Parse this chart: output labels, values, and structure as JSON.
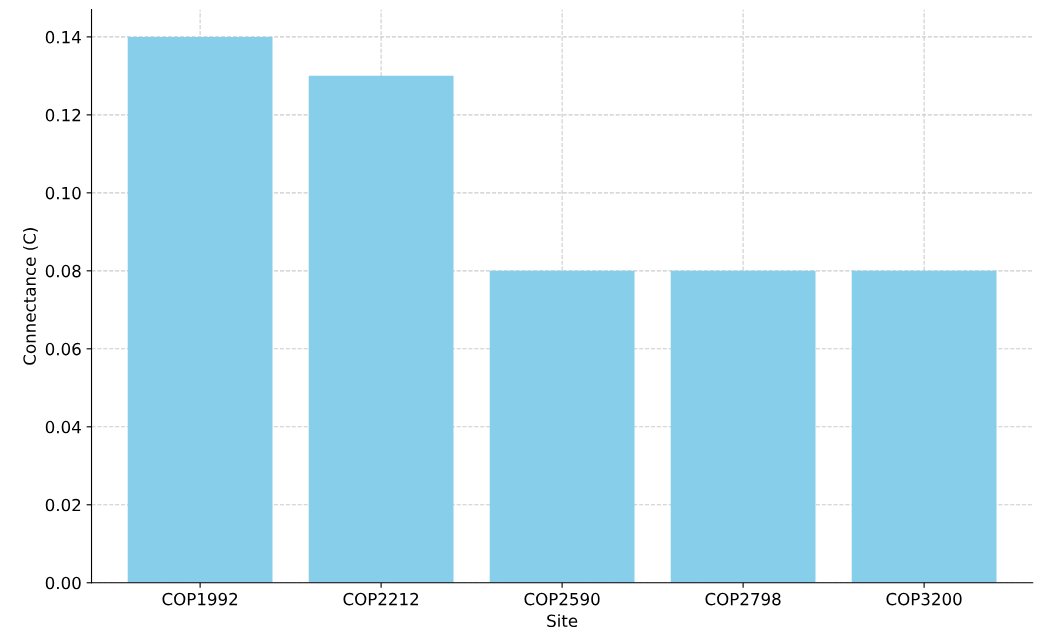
{
  "chart_data": {
    "type": "bar",
    "xlabel": "Site",
    "ylabel": "Connectance (C)",
    "categories": [
      "COP1992",
      "COP2212",
      "COP2590",
      "COP2798",
      "COP3200"
    ],
    "values": [
      0.14,
      0.13,
      0.08,
      0.08,
      0.08
    ],
    "color": "#87ceeb",
    "ylim": [
      0,
      0.147
    ],
    "yticks": [
      {
        "value": 0,
        "label": "0.00"
      },
      {
        "value": 0.02,
        "label": "0.02"
      },
      {
        "value": 0.04,
        "label": "0.04"
      },
      {
        "value": 0.06,
        "label": "0.06"
      },
      {
        "value": 0.08,
        "label": "0.08"
      },
      {
        "value": 0.1,
        "label": "0.10"
      },
      {
        "value": 0.12,
        "label": "0.12"
      },
      {
        "value": 0.14,
        "label": "0.14"
      }
    ],
    "grid": true
  }
}
